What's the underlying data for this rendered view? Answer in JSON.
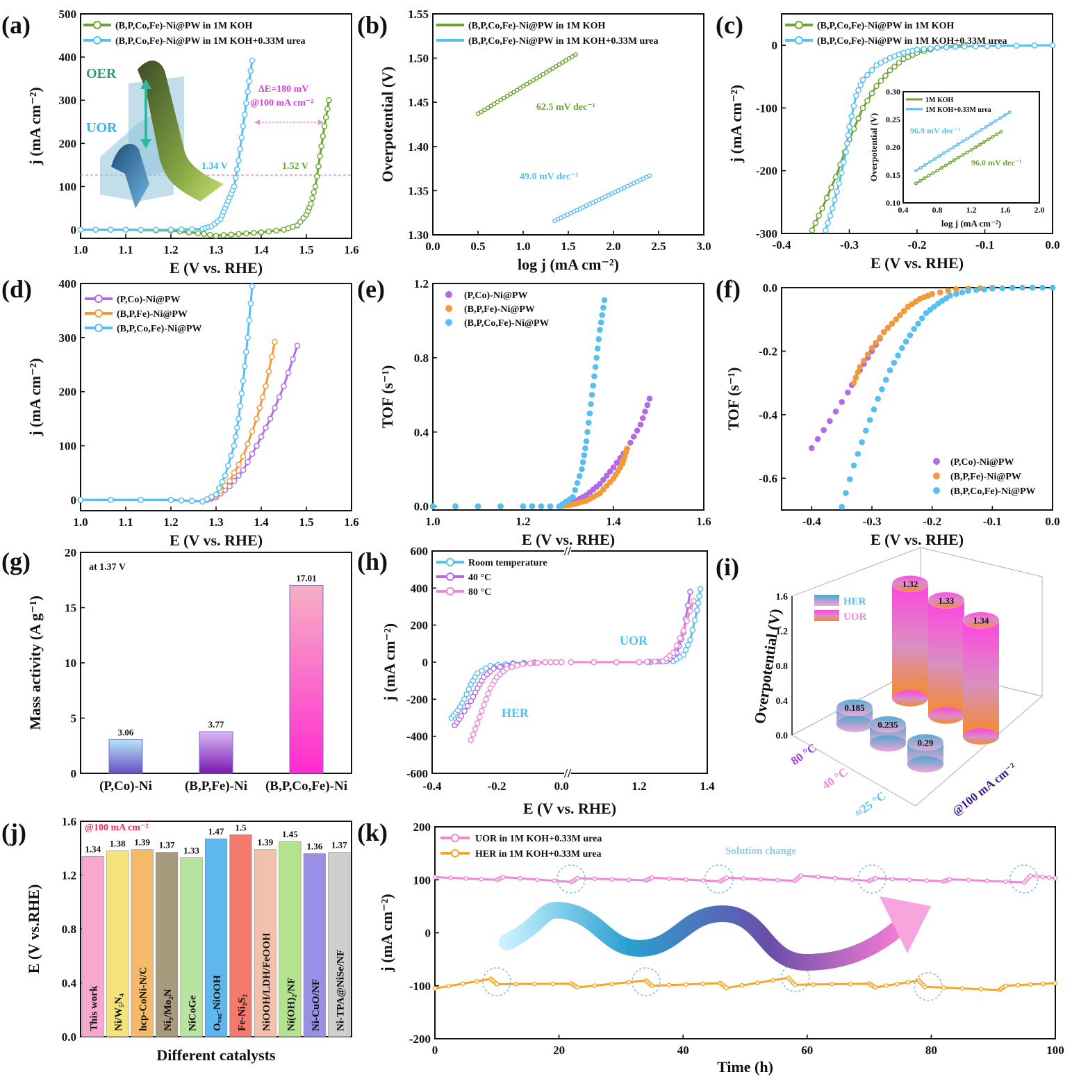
{
  "colors": {
    "green": "#6aa52c",
    "blue": "#55bff0",
    "purple": "#b36ae6",
    "orange": "#f29a37",
    "pink": "#ef86d6",
    "gold": "#f5a623",
    "magenta": "#ff2bd0",
    "hint": "#a6a6a6"
  },
  "panels": {
    "a": {
      "label": "(a)",
      "legend": [
        "(B,P,Co,Fe)-Ni@PW in 1M KOH",
        "(B,P,Co,Fe)-Ni@PW in 1M KOH+0.33M urea"
      ],
      "oer": "OER",
      "uor": "UOR",
      "delta_e": "ΔE=180 mV",
      "delta_at": "@100 mA cm⁻²",
      "v_uor": "1.34 V",
      "v_oer": "1.52 V"
    },
    "b": {
      "label": "(b)",
      "legend": [
        "(B,P,Co,Fe)-Ni@PW in 1M KOH",
        "(B,P,Co,Fe)-Ni@PW in 1M KOH+0.33M urea"
      ],
      "slope1": "62.5 mV dec⁻¹",
      "slope2": "49.0 mV dec⁻¹"
    },
    "c": {
      "label": "(c)",
      "legend": [
        "(B,P,Co,Fe)-Ni@PW in 1M KOH",
        "(B,P,Co,Fe)-Ni@PW in 1M KOH+0.33M urea"
      ],
      "inset_legend": [
        "1M KOH",
        "1M KOH+0.33M urea"
      ],
      "inset_slope1": "96.9 mV dec⁻¹",
      "inset_slope2": "96.0 mV dec⁻¹",
      "inset_ylabel": "Overpotential (V)",
      "inset_xlabel": "log j (mA cm⁻²)"
    },
    "d": {
      "label": "(d)",
      "legend": [
        "(P,Co)-Ni@PW",
        "(B,P,Fe)-Ni@PW",
        "(B,P,Co,Fe)-Ni@PW"
      ]
    },
    "e": {
      "label": "(e)",
      "legend": [
        "(P,Co)-Ni@PW",
        "(B,P,Fe)-Ni@PW",
        "(B,P,Co,Fe)-Ni@PW"
      ]
    },
    "f": {
      "label": "(f)",
      "legend": [
        "(P,Co)-Ni@PW",
        "(B,P,Fe)-Ni@PW",
        "(B,P,Co,Fe)-Ni@PW"
      ]
    },
    "g": {
      "label": "(g)",
      "note": "at 1.37 V"
    },
    "h": {
      "label": "(h)",
      "legend": [
        "Room temperature",
        "40 °C",
        "80 °C"
      ],
      "uor": "UOR",
      "her": "HER"
    },
    "i": {
      "label": "(i)",
      "legend": [
        "HER",
        "UOR"
      ],
      "ylabel": "Overpotential (V)",
      "zlabel": "@100 mA cm⁻²",
      "yticks": [
        "0.0",
        "0.4",
        "0.8",
        "1.2",
        "1.6"
      ]
    },
    "j": {
      "label": "(j)",
      "note": "@100 mA cm⁻²"
    },
    "k": {
      "label": "(k)",
      "legend": [
        "UOR in 1M KOH+0.33M urea",
        "HER in 1M KOH+0.33M urea"
      ],
      "note": "Solution change"
    }
  },
  "chart_data": [
    {
      "panel": "a",
      "type": "line",
      "xlabel": "E (V vs. RHE)",
      "ylabel": "j (mA cm⁻²)",
      "xlim": [
        1.0,
        1.6
      ],
      "ylim": [
        -20,
        500
      ],
      "xticks": [
        "1.0",
        "1.1",
        "1.2",
        "1.3",
        "1.4",
        "1.5",
        "1.6"
      ],
      "yticks": [
        "0",
        "100",
        "200",
        "300",
        "400",
        "500"
      ],
      "series": [
        {
          "name": "(B,P,Co,Fe)-Ni@PW in 1M KOH",
          "x": [
            1.0,
            1.1,
            1.2,
            1.26,
            1.3,
            1.35,
            1.4,
            1.45,
            1.48,
            1.5,
            1.51,
            1.52,
            1.53,
            1.54,
            1.55
          ],
          "y": [
            0,
            0,
            -2,
            -8,
            -14,
            -10,
            -6,
            0,
            10,
            35,
            60,
            100,
            170,
            240,
            300
          ]
        },
        {
          "name": "(B,P,Co,Fe)-Ni@PW in 1M KOH+0.33M urea",
          "x": [
            1.0,
            1.1,
            1.2,
            1.27,
            1.29,
            1.31,
            1.32,
            1.33,
            1.34,
            1.35,
            1.36,
            1.37,
            1.38
          ],
          "y": [
            0,
            0,
            0,
            2,
            8,
            25,
            50,
            75,
            100,
            160,
            240,
            320,
            392
          ]
        }
      ]
    },
    {
      "panel": "b",
      "type": "line",
      "xlabel": "log j (mA cm⁻²)",
      "ylabel": "Overpotential (V)",
      "xlim": [
        0.0,
        3.0
      ],
      "ylim": [
        1.3,
        1.55
      ],
      "xticks": [
        "0.0",
        "0.5",
        "1.0",
        "1.5",
        "2.0",
        "2.5",
        "3.0"
      ],
      "yticks": [
        "1.30",
        "1.35",
        "1.40",
        "1.45",
        "1.50",
        "1.55"
      ],
      "series": [
        {
          "name": "(B,P,Co,Fe)-Ni@PW in 1M KOH",
          "x": [
            0.5,
            1.58
          ],
          "y": [
            1.437,
            1.504
          ]
        },
        {
          "name": "(B,P,Co,Fe)-Ni@PW in 1M KOH+0.33M urea",
          "x": [
            1.35,
            2.4
          ],
          "y": [
            1.316,
            1.367
          ]
        }
      ]
    },
    {
      "panel": "c",
      "type": "line",
      "xlabel": "E (V vs. RHE)",
      "ylabel": "j (mA cm⁻²)",
      "xlim": [
        -0.4,
        0.0
      ],
      "ylim": [
        -300,
        50
      ],
      "xticks": [
        "-0.4",
        "-0.3",
        "-0.2",
        "-0.1",
        "0.0"
      ],
      "yticks": [
        "-300",
        "-200",
        "-100",
        "0"
      ],
      "series": [
        {
          "name": "(B,P,Co,Fe)-Ni@PW in 1M KOH",
          "x": [
            -0.355,
            -0.34,
            -0.32,
            -0.3,
            -0.28,
            -0.26,
            -0.24,
            -0.22,
            -0.2,
            -0.17,
            -0.13
          ],
          "y": [
            -295,
            -260,
            -210,
            -150,
            -100,
            -65,
            -40,
            -22,
            -12,
            -4,
            0
          ]
        },
        {
          "name": "(B,P,Co,Fe)-Ni@PW in 1M KOH+0.33M urea",
          "x": [
            -0.335,
            -0.325,
            -0.315,
            -0.305,
            -0.3,
            -0.29,
            -0.28,
            -0.26,
            -0.24,
            -0.22,
            -0.2,
            -0.17,
            -0.13,
            -0.08,
            0.0
          ],
          "y": [
            -295,
            -260,
            -220,
            -170,
            -130,
            -80,
            -55,
            -32,
            -20,
            -12,
            -7,
            -4,
            -2,
            -1,
            0
          ]
        }
      ],
      "inset": {
        "xlim": [
          0.4,
          2.0
        ],
        "ylim": [
          0.1,
          0.3
        ],
        "xticks": [
          "0.4",
          "0.8",
          "1.2",
          "1.6",
          "2.0"
        ],
        "yticks": [
          "0.10",
          "0.15",
          "0.20",
          "0.25",
          "0.30"
        ],
        "series": [
          {
            "name": "1M KOH",
            "x": [
              0.55,
              1.55
            ],
            "y": [
              0.135,
              0.228
            ]
          },
          {
            "name": "1M KOH+0.33M urea",
            "x": [
              0.55,
              1.65
            ],
            "y": [
              0.158,
              0.263
            ]
          }
        ]
      }
    },
    {
      "panel": "d",
      "type": "line",
      "xlabel": "E (V vs. RHE)",
      "ylabel": "j (mA cm⁻²)",
      "xlim": [
        1.0,
        1.6
      ],
      "ylim": [
        -20,
        400
      ],
      "xticks": [
        "1.0",
        "1.1",
        "1.2",
        "1.3",
        "1.4",
        "1.5",
        "1.6"
      ],
      "yticks": [
        "0",
        "100",
        "200",
        "300",
        "400"
      ],
      "series": [
        {
          "name": "(P,Co)-Ni@PW",
          "x": [
            1.0,
            1.2,
            1.27,
            1.3,
            1.33,
            1.36,
            1.39,
            1.42,
            1.45,
            1.48
          ],
          "y": [
            0,
            0,
            -3,
            5,
            25,
            55,
            100,
            150,
            210,
            285
          ]
        },
        {
          "name": "(B,P,Fe)-Ni@PW",
          "x": [
            1.0,
            1.2,
            1.27,
            1.3,
            1.33,
            1.36,
            1.39,
            1.41,
            1.43
          ],
          "y": [
            0,
            0,
            -3,
            8,
            35,
            80,
            150,
            210,
            292
          ]
        },
        {
          "name": "(B,P,Co,Fe)-Ni@PW",
          "x": [
            1.0,
            1.2,
            1.27,
            1.3,
            1.32,
            1.34,
            1.35,
            1.36,
            1.37,
            1.38
          ],
          "y": [
            0,
            0,
            -3,
            10,
            45,
            100,
            150,
            220,
            300,
            395
          ]
        }
      ]
    },
    {
      "panel": "e",
      "type": "scatter",
      "xlabel": "E (V vs. RHE)",
      "ylabel": "TOF (s⁻¹)",
      "xlim": [
        1.0,
        1.6
      ],
      "ylim": [
        -0.02,
        1.2
      ],
      "xticks": [
        "1.0",
        "1.2",
        "1.4",
        "1.6"
      ],
      "yticks": [
        "0.0",
        "0.4",
        "0.8",
        "1.2"
      ],
      "series": [
        {
          "name": "(P,Co)-Ni@PW",
          "x": [
            1.0,
            1.2,
            1.28,
            1.31,
            1.34,
            1.37,
            1.4,
            1.43,
            1.46,
            1.48
          ],
          "y": [
            0,
            0,
            0,
            0.02,
            0.06,
            0.12,
            0.21,
            0.31,
            0.44,
            0.58
          ]
        },
        {
          "name": "(B,P,Fe)-Ni@PW",
          "x": [
            1.0,
            1.2,
            1.28,
            1.31,
            1.34,
            1.37,
            1.4,
            1.42,
            1.43
          ],
          "y": [
            0,
            0,
            0,
            0.01,
            0.03,
            0.07,
            0.15,
            0.23,
            0.31
          ]
        },
        {
          "name": "(B,P,Co,Fe)-Ni@PW",
          "x": [
            1.0,
            1.2,
            1.28,
            1.31,
            1.33,
            1.34,
            1.35,
            1.36,
            1.37,
            1.38
          ],
          "y": [
            0,
            0,
            0,
            0.05,
            0.2,
            0.35,
            0.55,
            0.75,
            0.95,
            1.11
          ]
        }
      ]
    },
    {
      "panel": "f",
      "type": "scatter",
      "xlabel": "E (V vs. RHE)",
      "ylabel": "TOF (s⁻¹)",
      "xlim": [
        -0.45,
        0.0
      ],
      "ylim": [
        -0.7,
        0.0
      ],
      "xticks": [
        "-0.4",
        "-0.3",
        "-0.2",
        "-0.1",
        "0.0"
      ],
      "yticks": [
        "-0.6",
        "-0.4",
        "-0.2",
        "0.0"
      ],
      "series": [
        {
          "name": "(P,Co)-Ni@PW",
          "x": [
            -0.4,
            -0.37,
            -0.34,
            -0.32,
            -0.3,
            -0.28,
            -0.26,
            -0.24,
            -0.22,
            -0.2,
            -0.16,
            -0.1,
            0.0
          ],
          "y": [
            -0.505,
            -0.42,
            -0.33,
            -0.26,
            -0.2,
            -0.14,
            -0.1,
            -0.06,
            -0.035,
            -0.02,
            -0.005,
            0,
            0
          ]
        },
        {
          "name": "(B,P,Fe)-Ni@PW",
          "x": [
            -0.33,
            -0.32,
            -0.3,
            -0.28,
            -0.26,
            -0.24,
            -0.22,
            -0.2,
            -0.16,
            -0.1,
            0.0
          ],
          "y": [
            -0.3,
            -0.25,
            -0.19,
            -0.14,
            -0.1,
            -0.06,
            -0.035,
            -0.02,
            -0.005,
            0,
            0
          ]
        },
        {
          "name": "(B,P,Co,Fe)-Ni@PW",
          "x": [
            -0.35,
            -0.33,
            -0.31,
            -0.29,
            -0.27,
            -0.25,
            -0.23,
            -0.21,
            -0.19,
            -0.17,
            -0.14,
            -0.1,
            -0.05,
            0.0
          ],
          "y": [
            -0.69,
            -0.56,
            -0.45,
            -0.35,
            -0.26,
            -0.19,
            -0.13,
            -0.08,
            -0.05,
            -0.025,
            -0.01,
            -0.003,
            0,
            0
          ]
        }
      ]
    },
    {
      "panel": "g",
      "type": "bar",
      "xlabel": "",
      "ylabel": "Mass activity (A g⁻¹)",
      "ylim": [
        0,
        20
      ],
      "yticks": [
        "0",
        "5",
        "10",
        "15",
        "20"
      ],
      "categories": [
        "(P,Co)-Ni",
        "(B,P,Fe)-Ni",
        "(B,P,Co,Fe)-Ni"
      ],
      "values": [
        3.06,
        3.77,
        17.01
      ],
      "value_labels": [
        "3.06",
        "3.77",
        "17.01"
      ]
    },
    {
      "panel": "h",
      "type": "line",
      "xlabel": "E (V vs. RHE)",
      "ylabel": "j (mA cm⁻²)",
      "ylim": [
        -600,
        600
      ],
      "xticks_left": [
        "-0.4",
        "-0.2",
        "0.0"
      ],
      "xticks_right": [
        "1.2",
        "1.4"
      ],
      "yticks": [
        "-600",
        "-400",
        "-200",
        "0",
        "200",
        "400",
        "600"
      ],
      "series": [
        {
          "name": "Room temperature",
          "her_x": [
            -0.34,
            -0.32,
            -0.3,
            -0.28,
            -0.26,
            -0.22,
            -0.15,
            -0.05,
            0.0
          ],
          "her_y": [
            -300,
            -260,
            -200,
            -120,
            -60,
            -20,
            -5,
            0,
            0
          ],
          "uor_x": [
            1.0,
            1.2,
            1.3,
            1.33,
            1.35,
            1.37,
            1.38
          ],
          "uor_y": [
            0,
            0,
            5,
            40,
            120,
            280,
            395
          ]
        },
        {
          "name": "40 °C",
          "her_x": [
            -0.33,
            -0.31,
            -0.28,
            -0.26,
            -0.24,
            -0.21,
            -0.15,
            -0.05,
            0.0
          ],
          "her_y": [
            -340,
            -290,
            -210,
            -140,
            -80,
            -35,
            -10,
            0,
            0
          ],
          "uor_x": [
            1.0,
            1.2,
            1.28,
            1.31,
            1.33,
            1.35
          ],
          "uor_y": [
            0,
            0,
            5,
            50,
            160,
            380
          ]
        },
        {
          "name": "80 °C",
          "her_x": [
            -0.28,
            -0.26,
            -0.24,
            -0.22,
            -0.2,
            -0.17,
            -0.12,
            -0.05,
            0.0
          ],
          "her_y": [
            -420,
            -330,
            -230,
            -140,
            -80,
            -35,
            -10,
            0,
            0
          ],
          "uor_x": [
            1.0,
            1.2,
            1.27,
            1.3,
            1.33,
            1.36
          ],
          "uor_y": [
            0,
            0,
            5,
            50,
            170,
            330
          ]
        }
      ]
    },
    {
      "panel": "i",
      "type": "bar3d",
      "categories": [
        "80 °C",
        "40 °C",
        "≈25 °C"
      ],
      "series": [
        {
          "name": "HER",
          "values": [
            0.185,
            0.235,
            0.29
          ],
          "labels": [
            "0.185",
            "0.235",
            "0.29"
          ]
        },
        {
          "name": "UOR",
          "values": [
            1.32,
            1.33,
            1.34
          ],
          "labels": [
            "1.32",
            "1.33",
            "1.34"
          ]
        }
      ]
    },
    {
      "panel": "j",
      "type": "bar",
      "xlabel": "Different catalysts",
      "ylabel": "E (V vs.RHE)",
      "ylim": [
        0.0,
        1.6
      ],
      "yticks": [
        "0.0",
        "0.4",
        "0.8",
        "1.2",
        "1.6"
      ],
      "categories": [
        "This work",
        "Ni/W₅N₄",
        "hcp-CoNi-N/C",
        "Ni₃/Mo₂N",
        "NiCoGe",
        "Oᵥₐ꜀-NiOOH",
        "Fe-Ni₃S₂",
        "NiOOH/LDH/FeOOH",
        "Ni(OH)₂/NF",
        "Ni-CuO/NF",
        "Ni-TPA@NiSe/NF"
      ],
      "values": [
        1.34,
        1.38,
        1.39,
        1.37,
        1.33,
        1.47,
        1.5,
        1.39,
        1.45,
        1.36,
        1.37
      ],
      "value_labels": [
        "1.34",
        "1.38",
        "1.39",
        "1.37",
        "1.33",
        "1.47",
        "1.5",
        "1.39",
        "1.45",
        "1.36",
        "1.37"
      ],
      "bar_colors": [
        "#f7a8cf",
        "#f6e27a",
        "#f5b96a",
        "#a89a7c",
        "#b8e3a0",
        "#5fb7ef",
        "#f47a6e",
        "#f2c1ad",
        "#b5e28f",
        "#9a8fe6",
        "#cfcfcf"
      ]
    },
    {
      "panel": "k",
      "type": "line",
      "xlabel": "Time (h)",
      "ylabel": "j (mA cm⁻²)",
      "xlim": [
        0,
        100
      ],
      "ylim": [
        -200,
        200
      ],
      "xticks": [
        "0",
        "20",
        "40",
        "60",
        "80",
        "100"
      ],
      "yticks": [
        "-200",
        "-100",
        "0",
        "100",
        "200"
      ],
      "series": [
        {
          "name": "UOR in 1M KOH+0.33M urea",
          "x": [
            0,
            10,
            11,
            22,
            23,
            34,
            35,
            46,
            47,
            58,
            59,
            70,
            71,
            82,
            83,
            95,
            96,
            100
          ],
          "y": [
            105,
            100,
            105,
            96,
            103,
            99,
            104,
            97,
            104,
            98,
            108,
            98,
            103,
            97,
            101,
            95,
            108,
            103
          ]
        },
        {
          "name": "HER in 1M KOH+0.33M urea",
          "x": [
            0,
            9,
            10,
            22,
            23,
            34,
            35,
            46,
            47,
            57,
            58,
            70,
            71,
            78,
            79,
            91,
            92,
            100
          ],
          "y": [
            -105,
            -87,
            -97,
            -96,
            -103,
            -90,
            -100,
            -95,
            -104,
            -85,
            -98,
            -96,
            -103,
            -90,
            -102,
            -108,
            -100,
            -95
          ]
        }
      ]
    }
  ]
}
